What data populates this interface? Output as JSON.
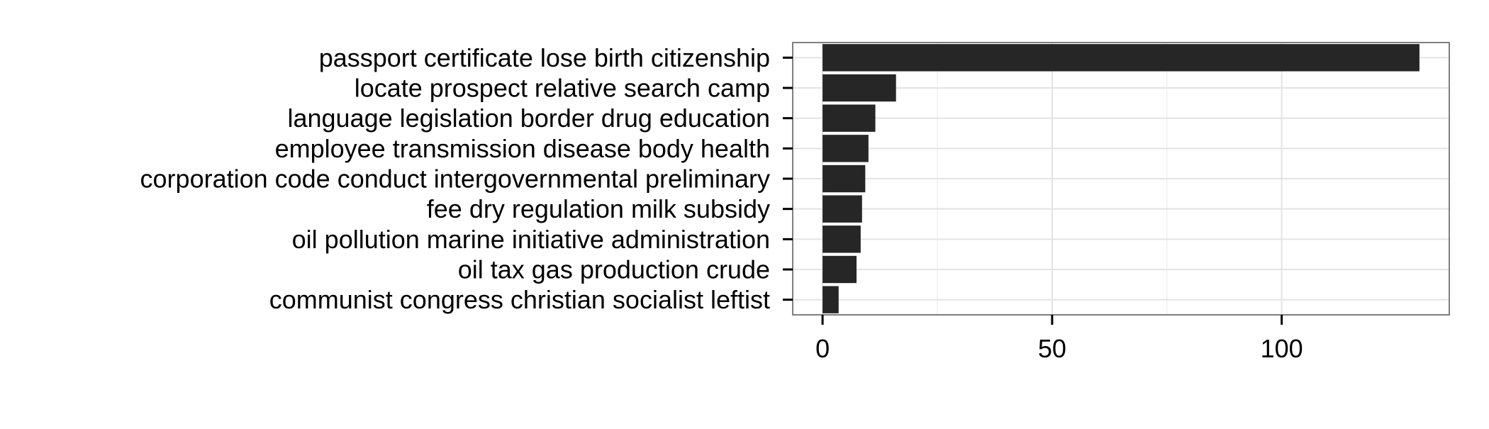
{
  "chart_data": {
    "type": "bar",
    "orientation": "horizontal",
    "categories": [
      "passport certificate lose birth citizenship",
      "locate prospect relative search camp",
      "language legislation border drug education",
      "employee transmission disease body health",
      "corporation code conduct intergovernmental preliminary",
      "fee dry regulation milk subsidy",
      "oil pollution marine initiative administration",
      "oil tax gas production crude",
      "communist congress christian socialist leftist"
    ],
    "values": [
      130,
      16,
      11.5,
      10,
      9.3,
      8.6,
      8.3,
      7.4,
      3.5
    ],
    "xlim": [
      -6.5,
      136.5
    ],
    "xticks": [
      0,
      50,
      100
    ],
    "xtick_labels": [
      "0",
      "50",
      "100"
    ],
    "title": "",
    "xlabel": "",
    "ylabel": "",
    "grid": true,
    "legend": "none",
    "colors": {
      "bar": "#262626",
      "panel_border": "#7f7f7f",
      "grid_major": "#e3e3e3",
      "grid_minor": "#f0f0f0",
      "text": "#000000"
    }
  }
}
